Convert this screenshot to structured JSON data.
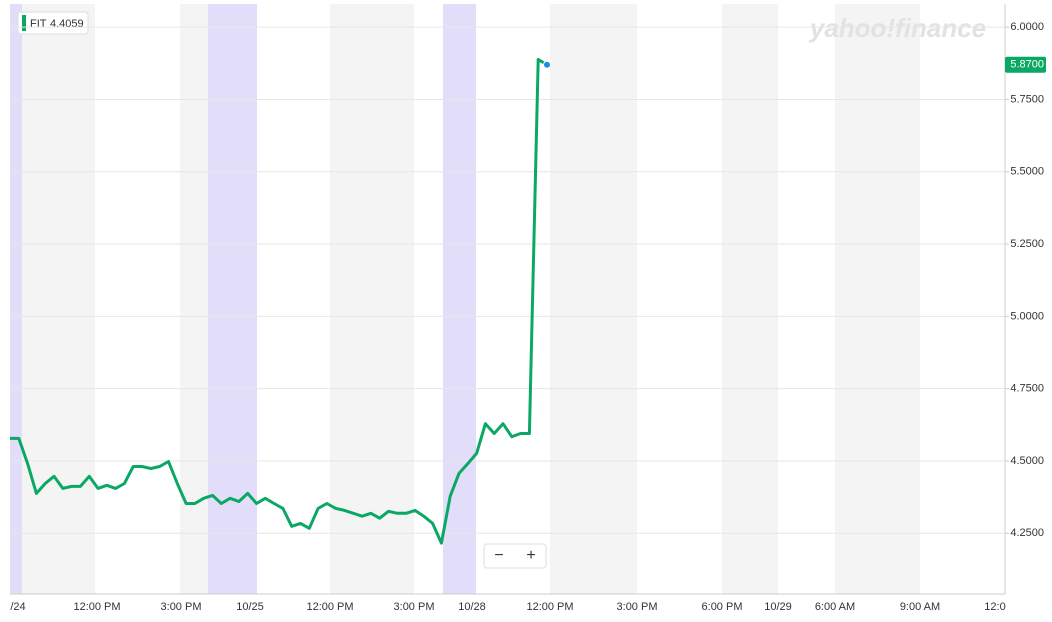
{
  "chart_data": {
    "type": "line",
    "watermark": "yahoo!finance",
    "legend": {
      "symbol": "FIT",
      "value": "4.4059"
    },
    "last_price": {
      "value": 5.87,
      "label": "5.8700"
    },
    "controls": [
      "−",
      "+"
    ],
    "xticks": [
      "/24",
      "12:00 PM",
      "3:00 PM",
      "10/25",
      "12:00 PM",
      "3:00 PM",
      "10/28",
      "12:00 PM",
      "3:00 PM",
      "6:00 PM",
      "10/29",
      "6:00 AM",
      "9:00 AM",
      "12:0"
    ],
    "ylim": [
      4.04,
      6.08
    ],
    "yticks": [
      {
        "value": 4.25,
        "label": "4.2500"
      },
      {
        "value": 4.5,
        "label": "4.5000"
      },
      {
        "value": 4.75,
        "label": "4.7500"
      },
      {
        "value": 5,
        "label": "5.0000"
      },
      {
        "value": 5.25,
        "label": "5.2500"
      },
      {
        "value": 5.5,
        "label": "5.5000"
      },
      {
        "value": 5.75,
        "label": "5.7500"
      },
      {
        "value": 6,
        "label": "6.0000"
      }
    ],
    "grid": true,
    "series": [
      {
        "name": "FIT",
        "color": "#0aa864",
        "values": [
          4.578,
          4.578,
          4.491,
          4.388,
          4.422,
          4.447,
          4.405,
          4.412,
          4.412,
          4.447,
          4.405,
          4.416,
          4.405,
          4.422,
          4.481,
          4.481,
          4.474,
          4.481,
          4.498,
          4.422,
          4.353,
          4.353,
          4.371,
          4.381,
          4.353,
          4.371,
          4.36,
          4.388,
          4.353,
          4.371,
          4.353,
          4.336,
          4.274,
          4.284,
          4.267,
          4.336,
          4.353,
          4.336,
          4.329,
          4.319,
          4.309,
          4.319,
          4.302,
          4.326,
          4.319,
          4.319,
          4.329,
          4.309,
          4.284,
          4.216,
          4.378,
          4.457,
          4.491,
          4.526,
          4.629,
          4.595,
          4.629,
          4.584,
          4.595,
          4.595,
          5.888,
          5.87
        ]
      }
    ]
  }
}
